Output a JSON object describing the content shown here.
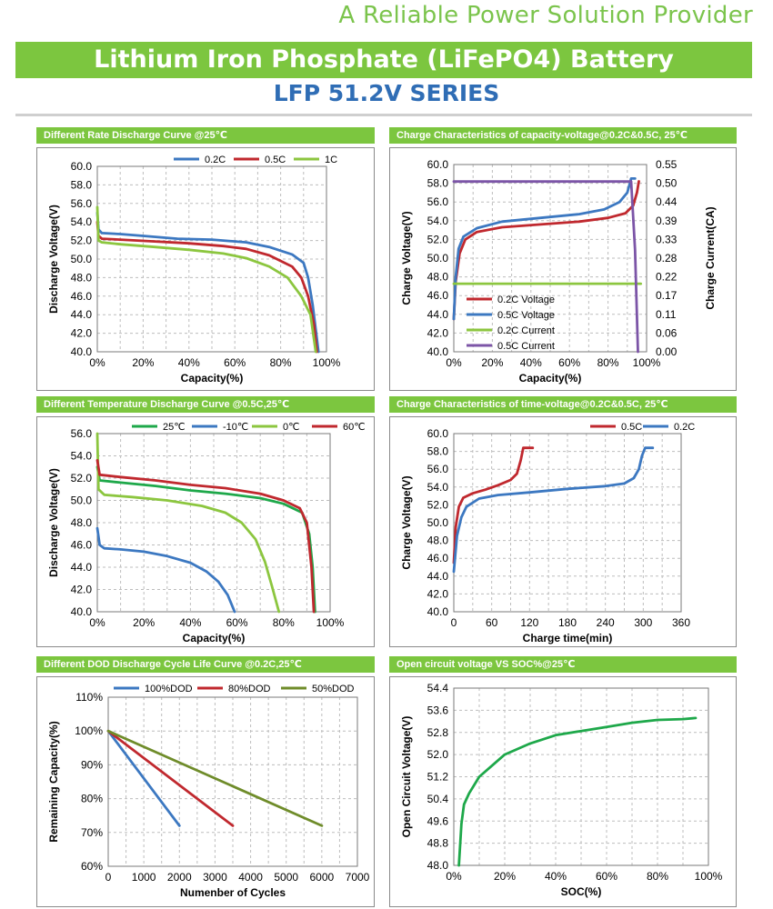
{
  "header": {
    "tagline": "A Reliable Power Solution Provider",
    "title": "Lithium Iron Phosphate (LiFePO4) Battery",
    "series": "LFP 51.2V SERIES"
  },
  "colors": {
    "brand_green": "#7cc63f",
    "title_blue": "#2f6db5",
    "blue": "#3c78c1",
    "red": "#c0282e",
    "light_green": "#8cc63f",
    "green": "#1ea84a",
    "purple": "#7c55a7",
    "olive": "#6f8c2a"
  },
  "chart_data": [
    {
      "id": "rate_discharge",
      "type": "line",
      "header": "Different Rate Discharge Curve @25℃",
      "xlabel": "Capacity(%)",
      "ylabel": "Discharge Voltage(V)",
      "x_ticks": [
        "0%",
        "20%",
        "40%",
        "60%",
        "80%",
        "100%"
      ],
      "xlim": [
        0,
        100
      ],
      "y_ticks": [
        "40.0",
        "42.0",
        "44.0",
        "46.0",
        "48.0",
        "50.0",
        "52.0",
        "54.0",
        "56.0",
        "58.0",
        "60.0"
      ],
      "ylim": [
        40,
        60
      ],
      "grid": true,
      "legend_position": "top",
      "series": [
        {
          "name": "0.2C",
          "color": "#3c78c1",
          "points": [
            [
              0,
              55.0
            ],
            [
              0.5,
              53.2
            ],
            [
              2,
              52.8
            ],
            [
              10,
              52.7
            ],
            [
              20,
              52.5
            ],
            [
              35,
              52.2
            ],
            [
              50,
              52.1
            ],
            [
              65,
              51.8
            ],
            [
              75,
              51.3
            ],
            [
              85,
              50.5
            ],
            [
              90,
              49.6
            ],
            [
              92,
              48.0
            ],
            [
              94,
              45.0
            ],
            [
              95.5,
              42.0
            ],
            [
              96.5,
              40.0
            ]
          ]
        },
        {
          "name": "0.5C",
          "color": "#c0282e",
          "points": [
            [
              0,
              54.0
            ],
            [
              0.5,
              52.5
            ],
            [
              2,
              52.2
            ],
            [
              10,
              52.1
            ],
            [
              25,
              51.9
            ],
            [
              40,
              51.7
            ],
            [
              55,
              51.4
            ],
            [
              65,
              51.1
            ],
            [
              75,
              50.4
            ],
            [
              85,
              49.2
            ],
            [
              89,
              48.0
            ],
            [
              92,
              46.0
            ],
            [
              94.5,
              43.0
            ],
            [
              95.8,
              40.0
            ]
          ]
        },
        {
          "name": "1C",
          "color": "#8cc63f",
          "points": [
            [
              0,
              55.6
            ],
            [
              0.5,
              52.0
            ],
            [
              2,
              51.8
            ],
            [
              10,
              51.6
            ],
            [
              25,
              51.3
            ],
            [
              40,
              51.0
            ],
            [
              55,
              50.6
            ],
            [
              65,
              50.1
            ],
            [
              75,
              49.2
            ],
            [
              83,
              48.0
            ],
            [
              89,
              46.0
            ],
            [
              93,
              44.0
            ],
            [
              95.3,
              40.0
            ]
          ]
        }
      ]
    },
    {
      "id": "charge_capacity",
      "type": "line",
      "header": "Charge  Characteristics of capacity-voltage@0.2C&0.5C, 25℃",
      "xlabel": "Capacity(%)",
      "ylabel": "Charge Voltage(V)",
      "y2label": "Charge Current(CA)",
      "x_ticks": [
        "0%",
        "20%",
        "40%",
        "60%",
        "80%",
        "100%"
      ],
      "xlim": [
        0,
        100
      ],
      "y_ticks": [
        "40.0",
        "42.0",
        "44.0",
        "46.0",
        "48.0",
        "50.0",
        "52.0",
        "54.0",
        "56.0",
        "58.0",
        "60.0"
      ],
      "ylim": [
        40,
        60
      ],
      "y2_ticks": [
        "0.00",
        "0.06",
        "0.11",
        "0.17",
        "0.22",
        "0.28",
        "0.33",
        "0.39",
        "0.44",
        "0.50",
        "0.55"
      ],
      "y2lim": [
        0,
        0.55
      ],
      "grid": true,
      "legend_position": "bottom-left",
      "series": [
        {
          "name": "0.2C Voltage",
          "axis": "left",
          "color": "#c0282e",
          "points": [
            [
              0,
              43.5
            ],
            [
              1,
              47.5
            ],
            [
              3,
              50.5
            ],
            [
              6,
              52.0
            ],
            [
              12,
              52.8
            ],
            [
              25,
              53.3
            ],
            [
              45,
              53.6
            ],
            [
              65,
              53.9
            ],
            [
              80,
              54.3
            ],
            [
              89,
              54.8
            ],
            [
              93,
              55.6
            ],
            [
              95,
              57.0
            ],
            [
              96,
              58.2
            ]
          ]
        },
        {
          "name": "0.5C Voltage",
          "axis": "left",
          "color": "#3c78c1",
          "points": [
            [
              0,
              43.5
            ],
            [
              1,
              48.0
            ],
            [
              2.5,
              51.0
            ],
            [
              5,
              52.3
            ],
            [
              12,
              53.2
            ],
            [
              25,
              53.9
            ],
            [
              45,
              54.3
            ],
            [
              65,
              54.7
            ],
            [
              78,
              55.2
            ],
            [
              86,
              56.0
            ],
            [
              90,
              57.0
            ],
            [
              92,
              58.5
            ],
            [
              94,
              58.5
            ]
          ]
        },
        {
          "name": "0.2C Current",
          "axis": "right",
          "color": "#8cc63f",
          "points": [
            [
              0,
              0.2
            ],
            [
              97,
              0.2
            ]
          ]
        },
        {
          "name": "0.5C Current",
          "axis": "right",
          "color": "#7c55a7",
          "points": [
            [
              0,
              0.5
            ],
            [
              92,
              0.5
            ],
            [
              94,
              0.3
            ],
            [
              95.5,
              0.0
            ]
          ]
        }
      ]
    },
    {
      "id": "temperature_discharge",
      "type": "line",
      "header": "Different Temperature Discharge Curve @0.5C,25℃",
      "xlabel": "Capacity(%)",
      "ylabel": "Discharge Voltage(V)",
      "x_ticks": [
        "0%",
        "20%",
        "40%",
        "60%",
        "80%",
        "100%"
      ],
      "xlim": [
        0,
        100
      ],
      "y_ticks": [
        "40.0",
        "42.0",
        "44.0",
        "46.0",
        "48.0",
        "50.0",
        "52.0",
        "54.0",
        "56.0"
      ],
      "ylim": [
        40,
        56
      ],
      "grid": true,
      "legend_position": "top",
      "series": [
        {
          "name": "25℃",
          "color": "#1ea84a",
          "points": [
            [
              0,
              53.0
            ],
            [
              1,
              51.8
            ],
            [
              10,
              51.6
            ],
            [
              25,
              51.3
            ],
            [
              40,
              50.9
            ],
            [
              55,
              50.6
            ],
            [
              70,
              50.2
            ],
            [
              80,
              49.7
            ],
            [
              88,
              48.9
            ],
            [
              91,
              47.0
            ],
            [
              92.5,
              44.0
            ],
            [
              93.5,
              40.0
            ]
          ]
        },
        {
          "name": "-10℃",
          "color": "#3c78c1",
          "points": [
            [
              0,
              47.5
            ],
            [
              1,
              46.0
            ],
            [
              3,
              45.7
            ],
            [
              10,
              45.6
            ],
            [
              20,
              45.4
            ],
            [
              30,
              45.0
            ],
            [
              40,
              44.4
            ],
            [
              47,
              43.6
            ],
            [
              52,
              42.7
            ],
            [
              56,
              41.5
            ],
            [
              59,
              40.0
            ]
          ]
        },
        {
          "name": "0℃",
          "color": "#8cc63f",
          "points": [
            [
              0,
              56.0
            ],
            [
              0.5,
              51.0
            ],
            [
              3,
              50.5
            ],
            [
              15,
              50.3
            ],
            [
              30,
              50.0
            ],
            [
              45,
              49.5
            ],
            [
              55,
              48.9
            ],
            [
              62,
              48.0
            ],
            [
              68,
              46.5
            ],
            [
              72,
              44.5
            ],
            [
              75,
              42.3
            ],
            [
              78,
              40.0
            ]
          ]
        },
        {
          "name": "60℃",
          "color": "#c0282e",
          "points": [
            [
              0,
              53.6
            ],
            [
              1,
              52.3
            ],
            [
              10,
              52.1
            ],
            [
              25,
              51.8
            ],
            [
              40,
              51.4
            ],
            [
              55,
              51.1
            ],
            [
              70,
              50.6
            ],
            [
              80,
              50.0
            ],
            [
              87,
              49.3
            ],
            [
              90,
              48.0
            ],
            [
              92,
              44.0
            ],
            [
              93,
              40.0
            ]
          ]
        }
      ]
    },
    {
      "id": "charge_time",
      "type": "line",
      "header": "Charge  Characteristics of time-voltage@0.2C&0.5C, 25℃",
      "xlabel": "Charge time(min)",
      "ylabel": "Charge Voltage(V)",
      "x_ticks": [
        "0",
        "60",
        "120",
        "180",
        "240",
        "300",
        "360"
      ],
      "xlim": [
        0,
        360
      ],
      "y_ticks": [
        "40.0",
        "42.0",
        "44.0",
        "46.0",
        "48.0",
        "50.0",
        "52.0",
        "54.0",
        "56.0",
        "58.0",
        "60.0"
      ],
      "ylim": [
        40,
        60
      ],
      "grid": true,
      "legend_position": "top",
      "series": [
        {
          "name": "0.5C",
          "color": "#c0282e",
          "points": [
            [
              0,
              45.5
            ],
            [
              3,
              49.5
            ],
            [
              8,
              51.8
            ],
            [
              15,
              52.8
            ],
            [
              30,
              53.3
            ],
            [
              50,
              53.7
            ],
            [
              70,
              54.2
            ],
            [
              90,
              54.8
            ],
            [
              100,
              55.5
            ],
            [
              106,
              57.0
            ],
            [
              110,
              58.4
            ],
            [
              125,
              58.4
            ]
          ]
        },
        {
          "name": "0.2C",
          "color": "#3c78c1",
          "points": [
            [
              0,
              44.5
            ],
            [
              5,
              48.5
            ],
            [
              12,
              50.6
            ],
            [
              20,
              51.8
            ],
            [
              40,
              52.7
            ],
            [
              70,
              53.1
            ],
            [
              120,
              53.4
            ],
            [
              180,
              53.8
            ],
            [
              240,
              54.1
            ],
            [
              270,
              54.4
            ],
            [
              285,
              55.0
            ],
            [
              293,
              56.0
            ],
            [
              298,
              57.5
            ],
            [
              303,
              58.4
            ],
            [
              315,
              58.4
            ]
          ]
        }
      ]
    },
    {
      "id": "dod_cycle_life",
      "type": "line",
      "header": "Different DOD Discharge Cycle Life Curve @0.2C,25℃",
      "xlabel": "Numenber of Cycles",
      "ylabel": "Remaining Capacity(%)",
      "x_ticks": [
        "0",
        "1000",
        "2000",
        "3000",
        "4000",
        "5000",
        "6000",
        "7000"
      ],
      "xlim": [
        0,
        7000
      ],
      "y_ticks": [
        "60%",
        "70%",
        "80%",
        "90%",
        "100%",
        "110%"
      ],
      "ylim": [
        60,
        110
      ],
      "grid": true,
      "legend_position": "top",
      "series": [
        {
          "name": "100%DOD",
          "color": "#3c78c1",
          "points": [
            [
              0,
              100
            ],
            [
              2000,
              72
            ]
          ]
        },
        {
          "name": "80%DOD",
          "color": "#c0282e",
          "points": [
            [
              0,
              100
            ],
            [
              3500,
              72
            ]
          ]
        },
        {
          "name": "50%DOD",
          "color": "#6f8c2a",
          "points": [
            [
              0,
              100
            ],
            [
              6000,
              72
            ]
          ]
        }
      ]
    },
    {
      "id": "ocv_soc",
      "type": "line",
      "header": "Open circuit voltage VS SOC%@25℃",
      "xlabel": "SOC(%)",
      "ylabel": "Open Circuit Voltage(V)",
      "x_ticks": [
        "0%",
        "20%",
        "40%",
        "60%",
        "80%",
        "100%"
      ],
      "xlim": [
        0,
        100
      ],
      "y_ticks": [
        "48.0",
        "48.8",
        "49.6",
        "50.4",
        "51.2",
        "52.0",
        "52.8",
        "53.6",
        "54.4"
      ],
      "ylim": [
        48,
        54.4
      ],
      "grid": true,
      "legend_position": "none",
      "series": [
        {
          "name": "",
          "color": "#1ea84a",
          "points": [
            [
              2,
              48.0
            ],
            [
              3,
              49.5
            ],
            [
              4,
              50.2
            ],
            [
              6,
              50.6
            ],
            [
              10,
              51.2
            ],
            [
              15,
              51.6
            ],
            [
              20,
              52.0
            ],
            [
              30,
              52.4
            ],
            [
              40,
              52.7
            ],
            [
              50,
              52.85
            ],
            [
              60,
              53.0
            ],
            [
              70,
              53.15
            ],
            [
              80,
              53.25
            ],
            [
              90,
              53.28
            ],
            [
              95,
              53.32
            ]
          ]
        }
      ]
    }
  ]
}
